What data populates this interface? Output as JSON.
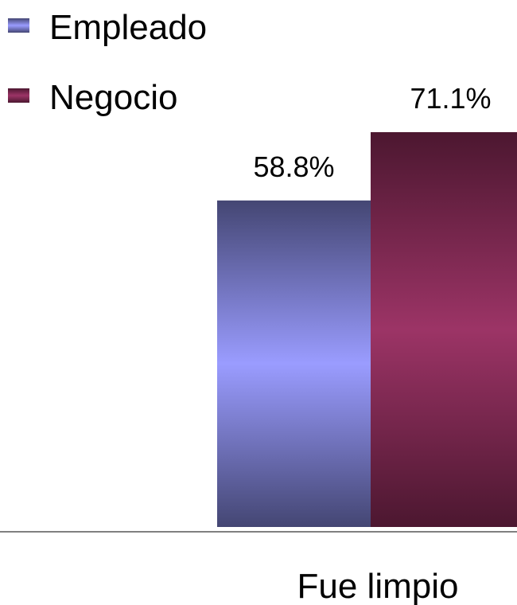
{
  "chart_data": {
    "type": "bar",
    "categories": [
      "Fue limpio"
    ],
    "series": [
      {
        "name": "Empleado",
        "values": [
          58.8
        ],
        "labels": [
          "58.8%"
        ],
        "color": "#9a9cff",
        "dark_color": "#444673"
      },
      {
        "name": "Negocio",
        "values": [
          71.1
        ],
        "labels": [
          "71.1%"
        ],
        "color": "#9c3466",
        "dark_color": "#4c1730"
      }
    ],
    "unit": "%",
    "ylim": [
      0,
      82
    ],
    "legend_position": "top-left",
    "grid": false,
    "axis_line_color": "#000000"
  }
}
